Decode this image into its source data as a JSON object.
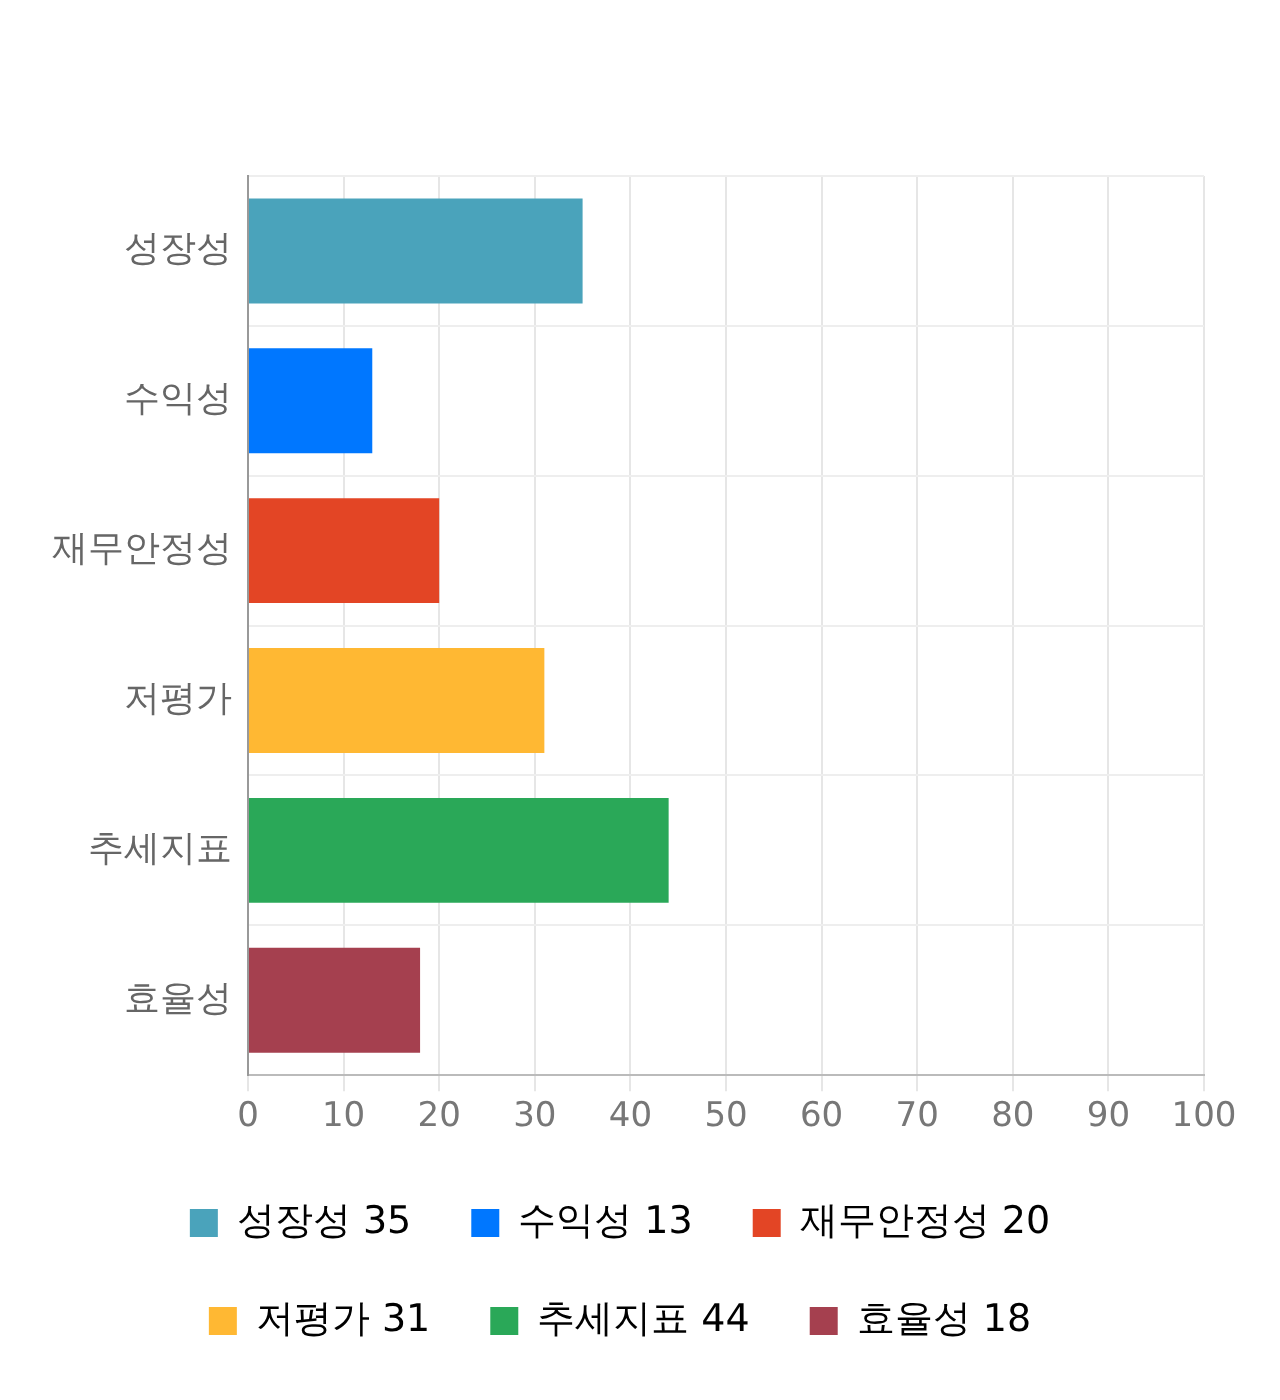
{
  "chart_data": {
    "type": "bar",
    "orientation": "horizontal",
    "categories": [
      "성장성",
      "수익성",
      "재무안정성",
      "저평가",
      "추세지표",
      "효율성"
    ],
    "series": [
      {
        "name": "성장성 35",
        "color": "#4aa3bb",
        "values": [
          35,
          null,
          null,
          null,
          null,
          null
        ]
      },
      {
        "name": "수익성 13",
        "color": "#0077ff",
        "values": [
          null,
          13,
          null,
          null,
          null,
          null
        ]
      },
      {
        "name": "재무안정성 20",
        "color": "#e34525",
        "values": [
          null,
          null,
          20,
          null,
          null,
          null
        ]
      },
      {
        "name": "저평가 31",
        "color": "#ffb833",
        "values": [
          null,
          null,
          null,
          31,
          null,
          null
        ]
      },
      {
        "name": "추세지표 44",
        "color": "#2aa858",
        "values": [
          null,
          null,
          null,
          null,
          44,
          null
        ]
      },
      {
        "name": "효율성 18",
        "color": "#a5404f",
        "values": [
          null,
          null,
          null,
          null,
          null,
          18
        ]
      }
    ],
    "xlim": [
      0,
      100
    ],
    "xticks": [
      0,
      10,
      20,
      30,
      40,
      50,
      60,
      70,
      80,
      90,
      100
    ],
    "grid": true,
    "legend": "bottom"
  }
}
